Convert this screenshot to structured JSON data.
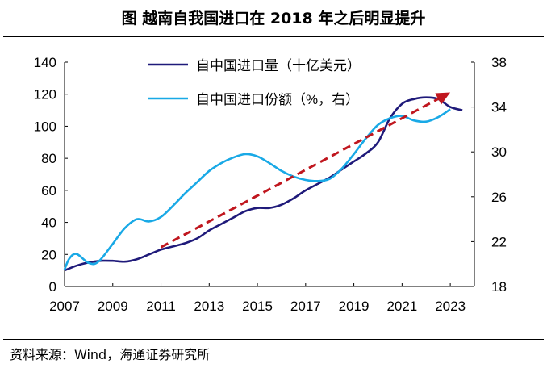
{
  "title": "图 越南自我国进口在 2018 年之后明显提升",
  "source": "资料来源：Wind，海通证券研究所",
  "chart_data": {
    "type": "line",
    "title": "图 越南自我国进口在 2018 年之后明显提升",
    "x_ticks": [
      "2007",
      "2009",
      "2011",
      "2013",
      "2015",
      "2017",
      "2019",
      "2021",
      "2023"
    ],
    "x_range": [
      2007,
      2024
    ],
    "y_left": {
      "ticks": [
        0,
        20,
        40,
        60,
        80,
        100,
        120,
        140
      ],
      "range": [
        0,
        140
      ]
    },
    "y_right": {
      "ticks": [
        18,
        22,
        26,
        30,
        34,
        38
      ],
      "range": [
        18,
        38
      ]
    },
    "grid": false,
    "legend_position": "top-center",
    "series": [
      {
        "name": "自中国进口量（十亿美元）",
        "axis": "left",
        "color": "#1f1a7a",
        "points": [
          [
            2007.0,
            10
          ],
          [
            2007.5,
            13
          ],
          [
            2008.0,
            15
          ],
          [
            2008.5,
            16
          ],
          [
            2009.0,
            16
          ],
          [
            2009.5,
            15.5
          ],
          [
            2010.0,
            17
          ],
          [
            2010.5,
            20
          ],
          [
            2011.0,
            23
          ],
          [
            2011.5,
            25
          ],
          [
            2012.0,
            27
          ],
          [
            2012.5,
            30
          ],
          [
            2013.0,
            35
          ],
          [
            2013.5,
            39
          ],
          [
            2014.0,
            43
          ],
          [
            2014.5,
            47
          ],
          [
            2015.0,
            49
          ],
          [
            2015.5,
            49
          ],
          [
            2016.0,
            51
          ],
          [
            2016.5,
            55
          ],
          [
            2017.0,
            60
          ],
          [
            2017.5,
            64
          ],
          [
            2018.0,
            68
          ],
          [
            2018.5,
            73
          ],
          [
            2019.0,
            78
          ],
          [
            2019.5,
            83
          ],
          [
            2020.0,
            90
          ],
          [
            2020.5,
            105
          ],
          [
            2021.0,
            114
          ],
          [
            2021.5,
            117
          ],
          [
            2022.0,
            118
          ],
          [
            2022.5,
            117
          ],
          [
            2023.0,
            112
          ],
          [
            2023.5,
            110
          ]
        ]
      },
      {
        "name": "自中国进口份额（%，右）",
        "axis": "right",
        "color": "#19a9e6",
        "points": [
          [
            2007.0,
            19.5
          ],
          [
            2007.2,
            20.5
          ],
          [
            2007.5,
            20.9
          ],
          [
            2008.0,
            20.1
          ],
          [
            2008.4,
            20.2
          ],
          [
            2009.0,
            21.8
          ],
          [
            2009.5,
            23.2
          ],
          [
            2010.0,
            24.0
          ],
          [
            2010.5,
            23.8
          ],
          [
            2011.0,
            24.2
          ],
          [
            2011.5,
            25.2
          ],
          [
            2012.0,
            26.3
          ],
          [
            2012.5,
            27.3
          ],
          [
            2013.0,
            28.3
          ],
          [
            2013.5,
            29.0
          ],
          [
            2014.0,
            29.5
          ],
          [
            2014.5,
            29.8
          ],
          [
            2015.0,
            29.6
          ],
          [
            2015.5,
            29.0
          ],
          [
            2016.0,
            28.3
          ],
          [
            2016.5,
            27.8
          ],
          [
            2017.0,
            27.5
          ],
          [
            2017.5,
            27.4
          ],
          [
            2018.0,
            27.6
          ],
          [
            2018.5,
            28.5
          ],
          [
            2019.0,
            29.8
          ],
          [
            2019.5,
            31.2
          ],
          [
            2020.0,
            32.4
          ],
          [
            2020.5,
            33.0
          ],
          [
            2021.0,
            33.2
          ],
          [
            2021.5,
            32.8
          ],
          [
            2022.0,
            32.7
          ],
          [
            2022.5,
            33.1
          ],
          [
            2023.0,
            33.8
          ]
        ]
      }
    ],
    "annotations": [
      {
        "type": "arrow",
        "style": "dashed",
        "color": "#c0161e",
        "from": [
          2011.0,
          21.5
        ],
        "to": [
          2023.0,
          35.3
        ]
      }
    ]
  }
}
